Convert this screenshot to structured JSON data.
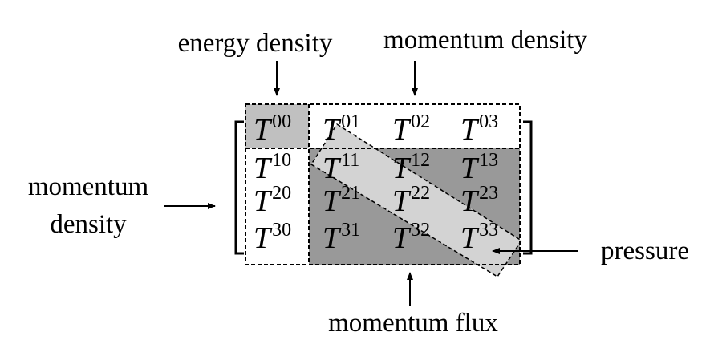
{
  "labels": {
    "energy_density": "energy density",
    "momentum_density_top": "momentum density",
    "momentum_density_left_line1": "momentum",
    "momentum_density_left_line2": "density",
    "pressure": "pressure",
    "momentum_flux": "momentum flux"
  },
  "tensor": {
    "symbol": "T",
    "rows": [
      [
        "00",
        "01",
        "02",
        "03"
      ],
      [
        "10",
        "11",
        "12",
        "13"
      ],
      [
        "20",
        "21",
        "22",
        "23"
      ],
      [
        "30",
        "31",
        "32",
        "33"
      ]
    ]
  },
  "colors": {
    "energy_cell": "#c0c0c0",
    "flux_block": "#999999",
    "pressure_band": "#d3d3d3",
    "ink": "#000000"
  }
}
